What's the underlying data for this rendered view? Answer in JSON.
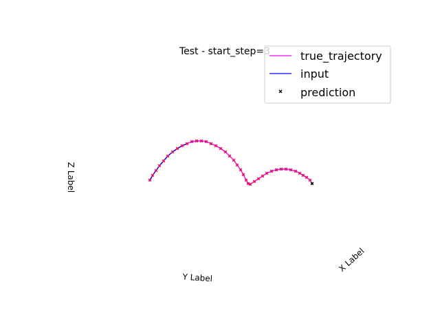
{
  "chart_data": {
    "type": "line",
    "title": "Test - start_step=3",
    "xlabel": "X Label",
    "ylabel": "Y Label",
    "zlabel": "Z Label",
    "projection": "3d",
    "axes_visible": false,
    "legend_placement": "upper-right",
    "series": [
      {
        "name": "true_trajectory",
        "color": "#ff00ff",
        "style": "line"
      },
      {
        "name": "input",
        "color": "#0000ff",
        "style": "line"
      },
      {
        "name": "prediction",
        "color": "#000000",
        "style": "scatter",
        "marker": "x"
      }
    ],
    "trajectory": {
      "x": [
        218,
        222,
        227,
        232,
        238,
        244,
        251,
        258,
        265,
        272,
        279,
        286,
        293,
        300,
        307,
        314,
        321,
        328,
        334,
        340,
        345,
        350,
        354,
        358,
        361,
        364,
        370,
        376,
        382,
        388,
        395,
        402,
        409,
        416,
        423,
        430,
        436,
        441,
        446,
        451,
        454
      ],
      "y": [
        262,
        255,
        248,
        241,
        234,
        227,
        221,
        216,
        212,
        209,
        206,
        205,
        205,
        206,
        209,
        212,
        216,
        221,
        227,
        233,
        240,
        247,
        254,
        262,
        267,
        268,
        264,
        260,
        256,
        252,
        249,
        247,
        246,
        246,
        247,
        249,
        252,
        255,
        258,
        262,
        267
      ],
      "input_count": 10
    }
  }
}
